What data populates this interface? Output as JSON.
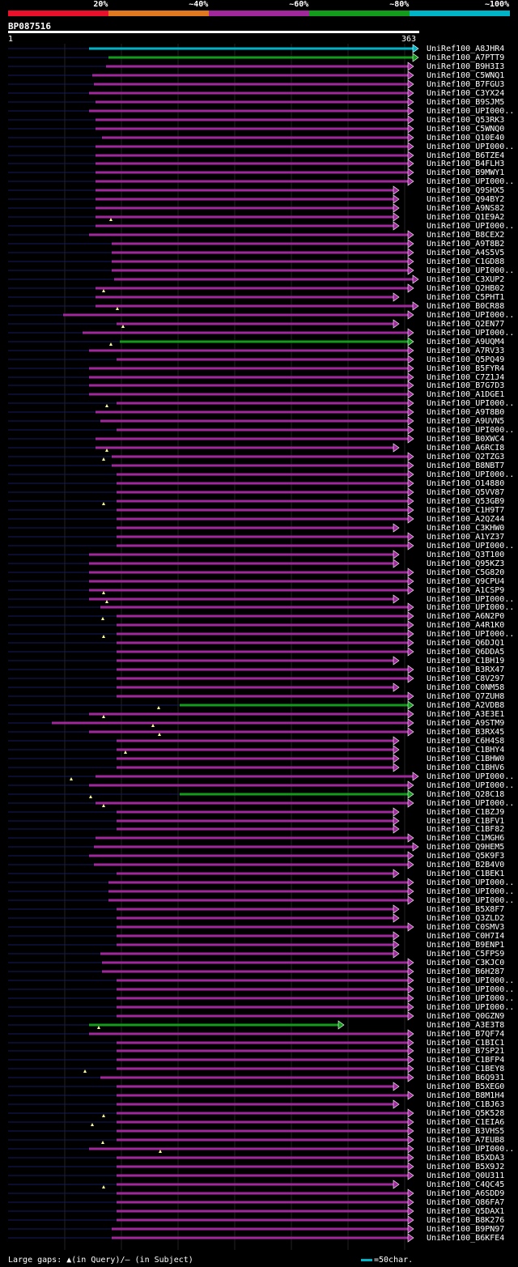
{
  "legend": [
    {
      "label": "20%",
      "color": "#e8102a"
    },
    {
      "label": "~40%",
      "color": "#e07820"
    },
    {
      "label": "~60%",
      "color": "#a0289c"
    },
    {
      "label": "~80%",
      "color": "#139c1c"
    },
    {
      "label": "~100%",
      "color": "#00b4c8"
    }
  ],
  "query_id": "BP087516",
  "ruler": {
    "start": "1",
    "end": "363"
  },
  "footer": {
    "text": "Large gaps: ▲(in Query)/— (in Subject)",
    "scale": "=50char."
  },
  "hits": [
    "UniRef100_A8JHR4",
    "UniRef100_A7PTT9",
    "UniRef100_B9H3I3",
    "UniRef100_C5WNQ1",
    "UniRef100_B7FGU3",
    "UniRef100_C3YX24",
    "UniRef100_B9SJM5",
    "UniRef100_UPI000..",
    "UniRef100_Q53RK3",
    "UniRef100_C5WNQ0",
    "UniRef100_Q10E40",
    "UniRef100_UPI000..",
    "UniRef100_B6TZE4",
    "UniRef100_B4FLH3",
    "UniRef100_B9MWY1",
    "UniRef100_UPI000..",
    "UniRef100_Q9SHX5",
    "UniRef100_Q94BY2",
    "UniRef100_A9NS82",
    "UniRef100_Q1E9A2",
    "UniRef100_UPI000..",
    "UniRef100_B8CEX2",
    "UniRef100_A9T8B2",
    "UniRef100_A4S5V5",
    "UniRef100_C1GD88",
    "UniRef100_UPI000..",
    "UniRef100_C3XUP2",
    "UniRef100_Q2HB02",
    "UniRef100_C5PHT1",
    "UniRef100_B0CR88",
    "UniRef100_UPI000..",
    "UniRef100_Q2EN77",
    "UniRef100_UPI000..",
    "UniRef100_A9UQM4",
    "UniRef100_A7RV33",
    "UniRef100_Q5PQ49",
    "UniRef100_B5FYR4",
    "UniRef100_C7Z1J4",
    "UniRef100_B7G7D3",
    "UniRef100_A1DGE1",
    "UniRef100_UPI000..",
    "UniRef100_A9T8B0",
    "UniRef100_A9UVN5",
    "UniRef100_UPI000..",
    "UniRef100_B0XWC4",
    "UniRef100_A6RCI8",
    "UniRef100_Q2TZG3",
    "UniRef100_B8NBT7",
    "UniRef100_UPI000..",
    "UniRef100_O14880",
    "UniRef100_Q5VV87",
    "UniRef100_Q53GB9",
    "UniRef100_C1H9T7",
    "UniRef100_A2QZ44",
    "UniRef100_C3KHW0",
    "UniRef100_A1YZ37",
    "UniRef100_UPI000..",
    "UniRef100_Q3T100",
    "UniRef100_Q95KZ3",
    "UniRef100_C5G820",
    "UniRef100_Q9CPU4",
    "UniRef100_A1CSP9",
    "UniRef100_UPI000..",
    "UniRef100_UPI000..",
    "UniRef100_A6N2P0",
    "UniRef100_A4R1K0",
    "UniRef100_UPI000..",
    "UniRef100_Q6DJQ1",
    "UniRef100_Q6DDA5",
    "UniRef100_C1BH19",
    "UniRef100_B3RX47",
    "UniRef100_C8V297",
    "UniRef100_C0NM58",
    "UniRef100_Q7ZUH8",
    "UniRef100_A2VDB8",
    "UniRef100_A3E3E1",
    "UniRef100_A9STM9",
    "UniRef100_B3RX45",
    "UniRef100_C6H4S8",
    "UniRef100_C1BHY4",
    "UniRef100_C1BHW0",
    "UniRef100_C1BHV6",
    "UniRef100_UPI000..",
    "UniRef100_UPI000..",
    "UniRef100_Q28C18",
    "UniRef100_UPI000..",
    "UniRef100_C1BZJ9",
    "UniRef100_C1BFV1",
    "UniRef100_C1BF82",
    "UniRef100_C1MGH6",
    "UniRef100_Q9HEM5",
    "UniRef100_Q5K9F3",
    "UniRef100_B2B4V0",
    "UniRef100_C1BEK1",
    "UniRef100_UPI000..",
    "UniRef100_UPI000..",
    "UniRef100_UPI000..",
    "UniRef100_B5X8F7",
    "UniRef100_Q3ZLD2",
    "UniRef100_C0SMV3",
    "UniRef100_C0H7I4",
    "UniRef100_B9ENP1",
    "UniRef100_C5FPS9",
    "UniRef100_C3KJC0",
    "UniRef100_B6H287",
    "UniRef100_UPI000..",
    "UniRef100_UPI000..",
    "UniRef100_UPI000..",
    "UniRef100_UPI000..",
    "UniRef100_Q0GZN9",
    "UniRef100_A3E3T8",
    "UniRef100_B7QF74",
    "UniRef100_C1BIC1",
    "UniRef100_B7SP21",
    "UniRef100_C1BFP4",
    "UniRef100_C1BEY8",
    "UniRef100_B6Q931",
    "UniRef100_B5XEG0",
    "UniRef100_B8M1H4",
    "UniRef100_C1BJ63",
    "UniRef100_Q5K528",
    "UniRef100_C1EIA6",
    "UniRef100_B3VHS5",
    "UniRef100_A7EUB8",
    "UniRef100_UPI000..",
    "UniRef100_B5XDA3",
    "UniRef100_B5X9J2",
    "UniRef100_Q0U311",
    "UniRef100_C4QC45",
    "UniRef100_A6SDD9",
    "UniRef100_Q86FA7",
    "UniRef100_Q5DAX1",
    "UniRef100_B8K276",
    "UniRef100_B9PN97",
    "UniRef100_B6KFE4"
  ]
}
